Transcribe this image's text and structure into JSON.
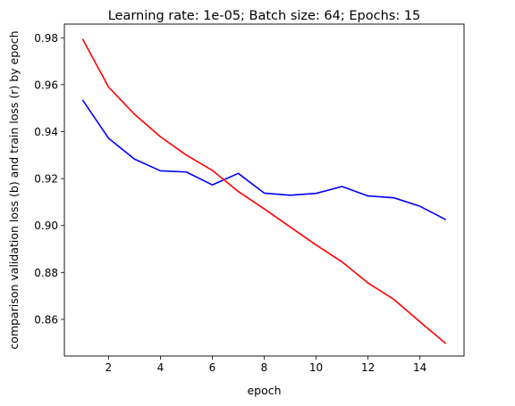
{
  "chart_data": {
    "type": "line",
    "title": "Learning rate: 1e-05; Batch size: 64; Epochs: 15",
    "xlabel": "epoch",
    "ylabel": "comparison validation loss (b) and train loss (r) by epoch",
    "xlim": [
      0.3,
      15.7
    ],
    "ylim": [
      0.8444,
      0.9858
    ],
    "xticks": [
      2,
      4,
      6,
      8,
      10,
      12,
      14
    ],
    "yticks": [
      0.86,
      0.88,
      0.9,
      0.92,
      0.94,
      0.96,
      0.98
    ],
    "ytick_labels": [
      "0.86",
      "0.88",
      "0.90",
      "0.92",
      "0.94",
      "0.96",
      "0.98"
    ],
    "x": [
      1,
      2,
      3,
      4,
      5,
      6,
      7,
      8,
      9,
      10,
      11,
      12,
      13,
      14,
      15
    ],
    "grid": false,
    "series": [
      {
        "color": "#0000ff",
        "values": [
          0.9535,
          0.9372,
          0.9283,
          0.9233,
          0.9228,
          0.9173,
          0.9222,
          0.9138,
          0.9129,
          0.9137,
          0.9166,
          0.9126,
          0.9118,
          0.9082,
          0.9025
        ]
      },
      {
        "color": "#ff0000",
        "values": [
          0.9795,
          0.959,
          0.9474,
          0.9378,
          0.93,
          0.9235,
          0.9145,
          0.9071,
          0.8994,
          0.8917,
          0.8845,
          0.8755,
          0.8685,
          0.859,
          0.8497
        ]
      }
    ]
  }
}
